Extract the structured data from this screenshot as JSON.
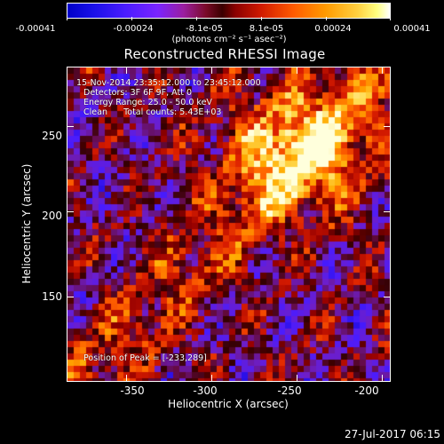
{
  "colorbar": {
    "tick_labels": [
      "-0.00041",
      "-0.00024",
      "-8.1e-05",
      "8.1e-05",
      "0.00024",
      "0.00041"
    ],
    "units_label": "(photons cm⁻² s⁻¹ asec⁻²)",
    "range": [
      -0.00041,
      0.00041
    ],
    "colormap": [
      "#0000c8",
      "#7a24ff",
      "#3a0000",
      "#d01a00",
      "#ff9a00",
      "#ffffff"
    ]
  },
  "chart_data": {
    "type": "heatmap",
    "title": "Reconstructed RHESSI Image",
    "xlabel": "Heliocentric X (arcsec)",
    "ylabel": "Heliocentric Y (arcsec)",
    "xlim": [
      -385,
      -195
    ],
    "ylim": [
      100,
      285
    ],
    "xticks": [
      "-350",
      "-300",
      "-250",
      "-200"
    ],
    "xtick_values": [
      -350,
      -300,
      -250,
      -200
    ],
    "yticks": [
      "250",
      "200",
      "150"
    ],
    "ytick_values": [
      250,
      200,
      150
    ],
    "peak_position": [
      -233,
      289
    ],
    "annotations": {
      "time_range": "15-Nov-2014 23:35:12.000 to 23:45:12.000",
      "detectors": "Detectors: 3F 6F 9F, Att 0",
      "energy_range": "Energy Range: 25.0 - 50.0 keV",
      "algorithm": "Clean      Total counts: 5.43E+03",
      "peak": "Position of Peak = [-233,289]"
    }
  },
  "timestamp": "27-Jul-2017 06:15"
}
